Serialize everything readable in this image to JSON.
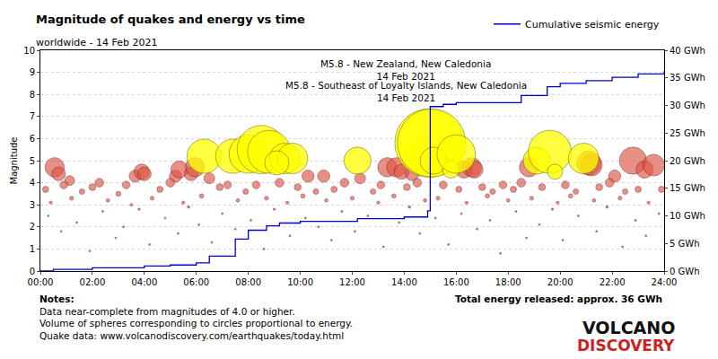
{
  "chart_data": {
    "type": "scatter",
    "title": "Magnitude of quakes and energy vs time",
    "subtitle": "worldwide - 14 Feb 2021",
    "y_label": "Magnitude",
    "xlim": [
      0,
      24
    ],
    "xticks": [
      {
        "value": 0,
        "label": "00:00"
      },
      {
        "value": 2,
        "label": "02:00"
      },
      {
        "value": 4,
        "label": "04:00"
      },
      {
        "value": 6,
        "label": "06:00"
      },
      {
        "value": 8,
        "label": "08:00"
      },
      {
        "value": 10,
        "label": "10:00"
      },
      {
        "value": 12,
        "label": "12:00"
      },
      {
        "value": 14,
        "label": "14:00"
      },
      {
        "value": 16,
        "label": "16:00"
      },
      {
        "value": 18,
        "label": "18:00"
      },
      {
        "value": 20,
        "label": "20:00"
      },
      {
        "value": 22,
        "label": "22:00"
      },
      {
        "value": 24,
        "label": "24:00"
      }
    ],
    "ylim": [
      0,
      10
    ],
    "yticks": [
      0,
      1,
      2,
      3,
      4,
      5,
      6,
      7,
      8,
      9,
      10
    ],
    "y2lim": [
      0,
      40
    ],
    "y2ticks": [
      {
        "value": 0,
        "label": "0 GWh"
      },
      {
        "value": 5,
        "label": "5 GWh"
      },
      {
        "value": 10,
        "label": "10 GWh"
      },
      {
        "value": 15,
        "label": "15 GWh"
      },
      {
        "value": 20,
        "label": "20 GWh"
      },
      {
        "value": 25,
        "label": "25 GWh"
      },
      {
        "value": 30,
        "label": "30 GWh"
      },
      {
        "value": 35,
        "label": "35 GWh"
      },
      {
        "value": 40,
        "label": "40 GWh"
      }
    ],
    "grid": true,
    "legend": "top-right",
    "series": [
      {
        "type": "scatter",
        "marker": "circle",
        "color": "#8b2a1a",
        "x": [
          0.3,
          0.8,
          1.4,
          1.9,
          2.4,
          2.9,
          3.2,
          3.8,
          4.2,
          4.8,
          5.3,
          5.7,
          6.1,
          6.6,
          7.0,
          7.5,
          8.1,
          8.6,
          9.0,
          9.6,
          10.2,
          10.7,
          11.2,
          11.6,
          12.1,
          12.6,
          13.2,
          13.8,
          14.2,
          14.6,
          15.2,
          15.7,
          16.2,
          16.8,
          17.3,
          17.7,
          18.3,
          18.7,
          19.2,
          19.7,
          20.1,
          20.7,
          21.4,
          21.8,
          22.4,
          22.9,
          23.3,
          23.8
        ],
        "values": [
          2.5,
          1.8,
          2.2,
          0.9,
          2.7,
          1.5,
          2.0,
          2.8,
          1.2,
          2.4,
          1.7,
          2.9,
          2.1,
          1.3,
          2.6,
          1.9,
          2.3,
          1.0,
          2.8,
          1.6,
          2.4,
          2.0,
          1.4,
          2.7,
          1.8,
          2.5,
          1.1,
          2.2,
          2.9,
          1.7,
          2.4,
          1.2,
          2.6,
          1.9,
          2.3,
          0.8,
          2.7,
          1.5,
          2.1,
          2.8,
          1.4,
          2.5,
          1.8,
          2.9,
          1.1,
          2.3,
          1.6,
          2.6
        ]
      },
      {
        "type": "scatter",
        "marker": "circle",
        "color": "#dd5544",
        "x": [
          0.55,
          0.7,
          1.13,
          2.27,
          3.65,
          3.9,
          4.0,
          5.2,
          5.35,
          5.8,
          5.95,
          6.5,
          10.3,
          10.9,
          12.3,
          13.35,
          13.7,
          13.9,
          14.3,
          16.3,
          16.6,
          16.7,
          18.8,
          21.1,
          21.2,
          22.1,
          22.8,
          23.25,
          23.6,
          0.2,
          0.9,
          1.6,
          2.0,
          3.0,
          3.3,
          4.6,
          5.0,
          6.9,
          7.2,
          7.9,
          8.3,
          9.2,
          9.9,
          10.6,
          11.3,
          11.7,
          12.8,
          13.1,
          14.1,
          14.5,
          15.5,
          16.1,
          17.0,
          17.4,
          17.8,
          18.2,
          18.5,
          19.3,
          20.2,
          20.6,
          21.5,
          21.9,
          22.5,
          23.0,
          23.9,
          0.4,
          1.2,
          2.6,
          3.5,
          4.3,
          5.5,
          6.2,
          7.6,
          8.7,
          9.5,
          10.1,
          11.0,
          12.0,
          13.0,
          13.6,
          14.8,
          15.3,
          16.4,
          17.2,
          18.0,
          18.9,
          19.9,
          20.4,
          21.3,
          22.3,
          23.4
        ],
        "values": [
          4.7,
          4.4,
          4.1,
          4.0,
          4.3,
          4.5,
          4.4,
          4.3,
          4.6,
          4.4,
          4.7,
          4.2,
          4.3,
          4.3,
          4.2,
          4.7,
          4.7,
          4.5,
          4.4,
          4.6,
          4.7,
          4.6,
          4.7,
          4.9,
          4.8,
          4.3,
          5.0,
          4.6,
          4.8,
          3.7,
          3.9,
          3.6,
          3.8,
          3.5,
          3.9,
          3.7,
          4.0,
          3.8,
          3.9,
          3.6,
          3.9,
          4.0,
          3.8,
          3.6,
          3.7,
          4.0,
          3.6,
          3.9,
          3.8,
          4.0,
          3.9,
          3.7,
          3.8,
          3.6,
          3.9,
          3.7,
          4.0,
          3.8,
          3.9,
          3.6,
          3.8,
          4.0,
          3.6,
          3.7,
          3.7,
          3.1,
          3.3,
          3.2,
          3.0,
          3.3,
          3.1,
          3.4,
          3.2,
          3.3,
          3.1,
          3.4,
          3.2,
          3.3,
          3.1,
          3.4,
          3.2,
          3.3,
          3.1,
          3.4,
          3.2,
          3.3,
          3.1,
          3.4,
          3.2,
          3.3,
          3.1
        ]
      },
      {
        "type": "scatter",
        "marker": "circle",
        "color": "#ffff00",
        "x": [
          6.3,
          7.4,
          8.0,
          8.5,
          8.8,
          9.4,
          9.7,
          9.1,
          12.2,
          14.7,
          14.95,
          15.05,
          15.13,
          15.8,
          16.0,
          19.1,
          19.6,
          19.8,
          20.9
        ],
        "values": [
          5.2,
          5.2,
          5.3,
          5.5,
          5.4,
          5.1,
          5.1,
          4.9,
          5.0,
          5.2,
          5.8,
          5.8,
          5.0,
          4.6,
          5.3,
          5.0,
          5.4,
          4.5,
          5.1
        ]
      },
      {
        "type": "line",
        "name": "Cumulative seismic energy",
        "axis": "y2",
        "color": "#0000cc",
        "line_style": "solid",
        "x": [
          0,
          0.5,
          2,
          4,
          5,
          6,
          6.5,
          7.5,
          8,
          8.7,
          9.2,
          10,
          12.2,
          14,
          14.9,
          15.0,
          15.5,
          16,
          18.5,
          19.5,
          20,
          21,
          22,
          23,
          24
        ],
        "values": [
          0,
          0.3,
          0.6,
          0.9,
          1.1,
          1.5,
          2.7,
          5.8,
          7.4,
          8.2,
          8.7,
          9.0,
          9.5,
          9.8,
          10.9,
          29.8,
          30.2,
          30.5,
          31.8,
          33.4,
          34.0,
          34.5,
          35.1,
          35.7,
          36.2
        ]
      }
    ],
    "annotations": [
      {
        "lines": [
          "M5.8 - New Zealand, New Caledonia",
          "14 Feb 2021"
        ]
      },
      {
        "lines": [
          "M5.8 - Southeast of Loyalty Islands, New Caledonia",
          "14 Feb 2021"
        ]
      }
    ],
    "notes": {
      "heading": "Notes:",
      "lines": [
        "Data near-complete from magnitudes of 4.0 or higher.",
        "Volume of spheres corresponding to circles proportional to energy.",
        "Quake data: www.volcanodiscovery.com/earthquakes/today.html"
      ]
    },
    "total": "Total energy released: approx. 36 GWh",
    "logo": [
      "VOLCANO",
      "DISCOVERY"
    ]
  }
}
